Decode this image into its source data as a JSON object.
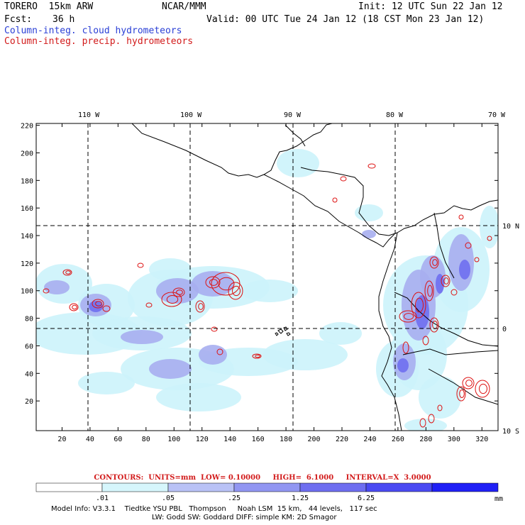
{
  "header": {
    "model": "TORERO  15km ARW",
    "org": "NCAR/MMM",
    "init": "Init: 12 UTC Sun 22 Jan 12",
    "fcst_label": "Fcst:",
    "fcst_value": "36 h",
    "valid": "Valid: 00 UTC Tue 24 Jan 12 (18 CST Mon 23 Jan 12)",
    "field1": "Column-integ. cloud hydrometeors",
    "field2": "Column-integ. precip. hydrometeors",
    "field1_color": "#2a3fd6",
    "field2_color": "#d21a1a"
  },
  "map": {
    "top_lon_labels": [
      "110 W",
      "100 W",
      "90 W",
      "80 W",
      "70 W"
    ],
    "right_lat_labels": [
      "10 N",
      "0",
      "10 S"
    ],
    "y_ticks": [
      "220",
      "200",
      "180",
      "160",
      "140",
      "120",
      "100",
      "80",
      "60",
      "40",
      "20"
    ],
    "x_ticks": [
      "20",
      "40",
      "60",
      "80",
      "100",
      "120",
      "140",
      "160",
      "180",
      "200",
      "220",
      "240",
      "260",
      "280",
      "300",
      "320"
    ],
    "colors": {
      "cloud_light": "#ccf3fb",
      "cloud_mid": "#a7aef0",
      "cloud_strong": "#6f6ff0",
      "precip_contour": "#dd1111",
      "coast": "#000000"
    }
  },
  "contours": {
    "text": "CONTOURS:  UNITS=mm  LOW= 0.10000     HIGH=  6.1000     INTERVAL=X  3.0000"
  },
  "colorbar": {
    "labels": [
      ".01",
      ".05",
      ".25",
      "1.25",
      "6.25"
    ],
    "unit": "mm",
    "colors": [
      "#ffffff",
      "#d6f6fc",
      "#b9c2f6",
      "#9196f2",
      "#6e6ef0",
      "#4a4af2",
      "#2020f6"
    ]
  },
  "footer": {
    "line1": "Model Info: V3.3.1    Tiedtke YSU PBL   Thompson     Noah LSM  15 km,   44 levels,   117 sec",
    "line2": "LW: Godd SW: Goddard DIFF: simple KM: 2D Smagor"
  }
}
